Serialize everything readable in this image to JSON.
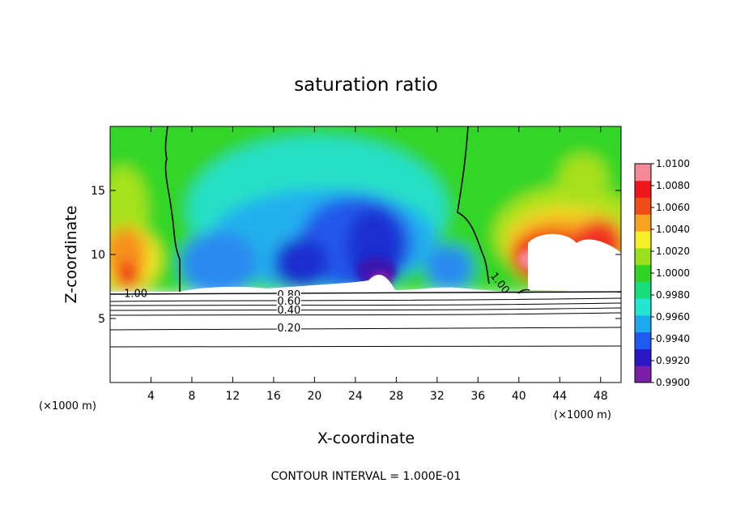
{
  "chart_data": {
    "type": "heatmap",
    "title": "saturation ratio",
    "xlabel": "X-coordinate",
    "ylabel": "Z-coordinate",
    "x_unit": "(×1000 m)",
    "xlim": [
      0,
      50
    ],
    "ylim": [
      0,
      20
    ],
    "x_ticks": [
      4,
      8,
      12,
      16,
      20,
      24,
      28,
      32,
      36,
      40,
      44,
      48
    ],
    "y_ticks": [
      5,
      10,
      15
    ],
    "colorbar": {
      "min": 0.99,
      "max": 1.01,
      "labels": [
        "1.0100",
        "1.0080",
        "1.0060",
        "1.0040",
        "1.0020",
        "1.0000",
        "0.9980",
        "0.9960",
        "0.9940",
        "0.9920",
        "0.9900"
      ],
      "colors": [
        "#7a1fa8",
        "#2b18c4",
        "#1f5af0",
        "#1ea8f0",
        "#22e6d0",
        "#19dc7a",
        "#2fd324",
        "#9ae01c",
        "#f5f028",
        "#f7a320",
        "#f04c16",
        "#f0161e",
        "#f58a96"
      ]
    },
    "contour_lines": [
      {
        "label": "1.00",
        "x": 2.5,
        "z": 7.0
      },
      {
        "label": "0.80",
        "x": 17.5,
        "z": 6.9
      },
      {
        "label": "0.60",
        "x": 17.5,
        "z": 6.4
      },
      {
        "label": "0.40",
        "x": 17.5,
        "z": 5.7
      },
      {
        "label": "0.20",
        "x": 17.5,
        "z": 4.3
      },
      {
        "label": "1.00",
        "x": 38.2,
        "z": 7.8
      }
    ],
    "annotation": "CONTOUR INTERVAL = 1.000E-01"
  }
}
